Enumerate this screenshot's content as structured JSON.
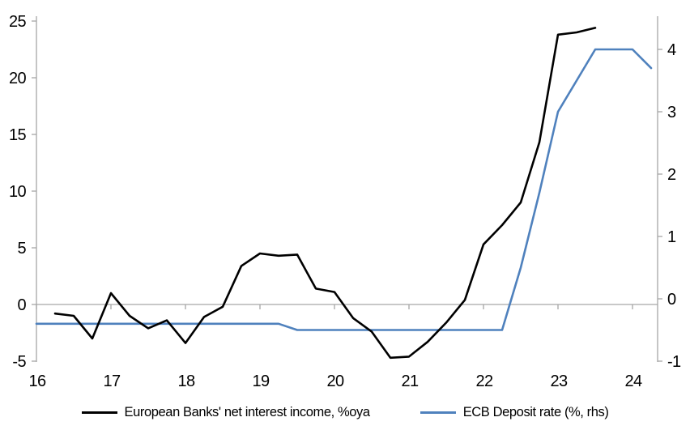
{
  "chart_data": {
    "type": "line",
    "title": "",
    "x_axis": {
      "ticks": [
        16,
        17,
        18,
        19,
        20,
        21,
        22,
        23,
        24
      ],
      "min": 16,
      "max": 24.34
    },
    "left_axis": {
      "ticks": [
        25,
        20,
        15,
        10,
        5,
        0,
        -5
      ],
      "min": -5,
      "max": 25
    },
    "right_axis": {
      "ticks": [
        4,
        3,
        2,
        1,
        0,
        -1
      ],
      "min": -1,
      "max": 4.45
    },
    "grid": "zero-line-only",
    "legend_position": "bottom-center",
    "series": [
      {
        "name": "European Banks' net interest income, %oya",
        "axis": "left",
        "color": "#000000",
        "x": [
          16.25,
          16.5,
          16.75,
          17.0,
          17.25,
          17.5,
          17.75,
          18.0,
          18.25,
          18.5,
          18.75,
          19.0,
          19.25,
          19.5,
          19.75,
          20.0,
          20.25,
          20.5,
          20.75,
          21.0,
          21.25,
          21.5,
          21.75,
          22.0,
          22.25,
          22.5,
          22.75,
          23.0,
          23.25,
          23.5
        ],
        "values": [
          -0.8,
          -1.0,
          -3.0,
          1.0,
          -1.0,
          -2.1,
          -1.4,
          -3.4,
          -1.1,
          -0.2,
          3.4,
          4.5,
          4.3,
          4.4,
          1.4,
          1.1,
          -1.2,
          -2.4,
          -4.7,
          -4.6,
          -3.3,
          -1.6,
          0.4,
          5.3,
          7.0,
          9.0,
          14.3,
          23.8,
          24.0,
          24.4
        ]
      },
      {
        "name": "ECB Deposit rate (%, rhs)",
        "axis": "right",
        "color": "#4f81bd",
        "x": [
          16.0,
          16.25,
          16.5,
          16.75,
          17.0,
          17.25,
          17.5,
          17.75,
          18.0,
          18.25,
          18.5,
          18.75,
          19.0,
          19.25,
          19.5,
          19.75,
          20.0,
          20.25,
          20.5,
          20.75,
          21.0,
          21.25,
          21.5,
          21.75,
          22.0,
          22.25,
          22.5,
          22.75,
          23.0,
          23.25,
          23.5,
          23.75,
          24.0,
          24.25
        ],
        "values": [
          -0.4,
          -0.4,
          -0.4,
          -0.4,
          -0.4,
          -0.4,
          -0.4,
          -0.4,
          -0.4,
          -0.4,
          -0.4,
          -0.4,
          -0.4,
          -0.4,
          -0.5,
          -0.5,
          -0.5,
          -0.5,
          -0.5,
          -0.5,
          -0.5,
          -0.5,
          -0.5,
          -0.5,
          -0.5,
          -0.5,
          0.5,
          1.7,
          3.0,
          3.5,
          4.0,
          4.0,
          4.0,
          3.7
        ]
      }
    ]
  },
  "colors": {
    "axis": "#a6a6a6",
    "text": "#000000",
    "background": "#ffffff"
  }
}
